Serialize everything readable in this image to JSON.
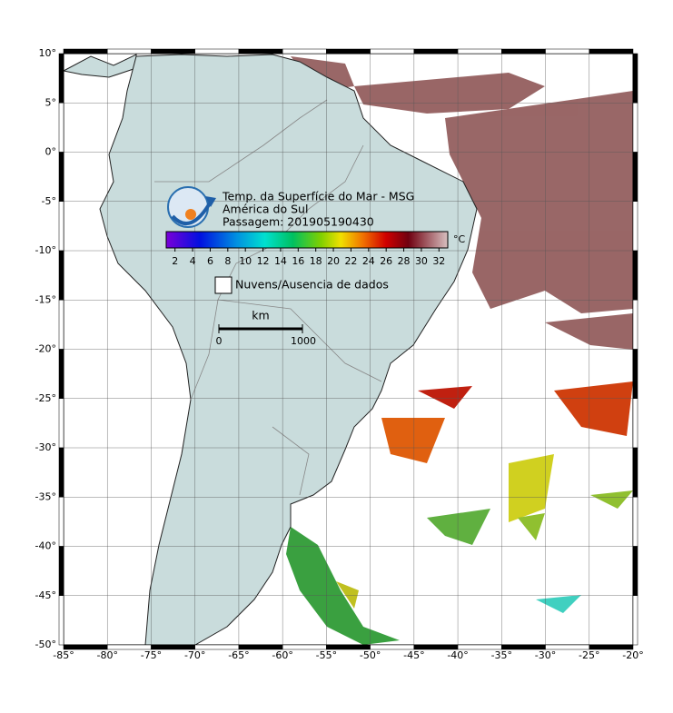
{
  "map": {
    "title_lines": [
      "Temp. da Superfície do Mar - MSG",
      "América do Sul",
      "Passagem: 201905190430"
    ],
    "xlim": [
      -85,
      -20
    ],
    "ylim": [
      -50,
      10
    ],
    "xticks": [
      {
        "value": -85,
        "label": "-85°"
      },
      {
        "value": -80,
        "label": "-80°"
      },
      {
        "value": -75,
        "label": "-75°"
      },
      {
        "value": -70,
        "label": "-70°"
      },
      {
        "value": -65,
        "label": "-65°"
      },
      {
        "value": -60,
        "label": "-60°"
      },
      {
        "value": -55,
        "label": "-55°"
      },
      {
        "value": -50,
        "label": "-50°"
      },
      {
        "value": -45,
        "label": "-45°"
      },
      {
        "value": -40,
        "label": "-40°"
      },
      {
        "value": -35,
        "label": "-35°"
      },
      {
        "value": -30,
        "label": "-30°"
      },
      {
        "value": -25,
        "label": "-25°"
      },
      {
        "value": -20,
        "label": "-20°"
      }
    ],
    "yticks": [
      {
        "value": 10,
        "label": "10°"
      },
      {
        "value": 5,
        "label": "5°"
      },
      {
        "value": 0,
        "label": "0°"
      },
      {
        "value": -5,
        "label": "-5°"
      },
      {
        "value": -10,
        "label": "-10°"
      },
      {
        "value": -15,
        "label": "-15°"
      },
      {
        "value": -20,
        "label": "-20°"
      },
      {
        "value": -25,
        "label": "-25°"
      },
      {
        "value": -30,
        "label": "-30°"
      },
      {
        "value": -35,
        "label": "-35°"
      },
      {
        "value": -40,
        "label": "-40°"
      },
      {
        "value": -45,
        "label": "-45°"
      },
      {
        "value": -50,
        "label": "-50°"
      }
    ],
    "colorbar": {
      "ticks": [
        2,
        4,
        6,
        8,
        10,
        12,
        14,
        16,
        18,
        20,
        22,
        24,
        26,
        28,
        30,
        32
      ],
      "unit": "°C"
    },
    "legend": "Nuvens/Ausencia de dados",
    "scale_bar": {
      "unit": "km",
      "start": "0",
      "end": "1000"
    }
  }
}
